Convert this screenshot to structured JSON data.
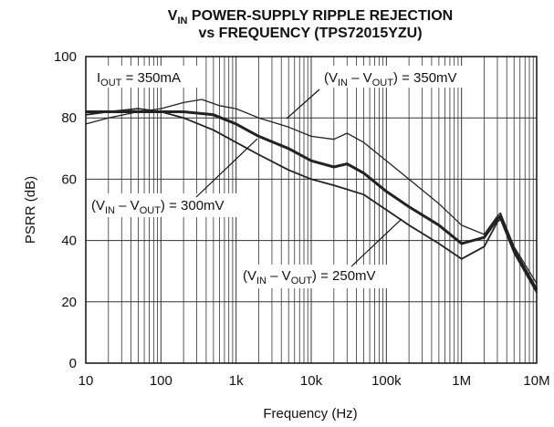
{
  "chart_data": {
    "type": "line",
    "title_lines": [
      [
        {
          "text": "V"
        },
        {
          "text": "IN",
          "sub": true
        },
        {
          "text": " POWER-SUPPLY RIPPLE REJECTION"
        }
      ],
      [
        {
          "text": "vs FREQUENCY (TPS72015YZU)"
        }
      ]
    ],
    "x_label": "Frequency (Hz)",
    "y_label": "PSRR (dB)",
    "log_x": true,
    "grid": true,
    "minor_grid": true,
    "color": "#222",
    "xlim": [
      10,
      10000000
    ],
    "ylim": [
      0,
      100
    ],
    "xticks": [
      10,
      100,
      {
        "value": 1000,
        "label": "1k"
      },
      {
        "value": 10000,
        "label": "10k"
      },
      {
        "value": 100000,
        "label": "100k"
      },
      {
        "value": 1000000,
        "label": "1M"
      },
      {
        "value": 10000000,
        "label": "10M"
      }
    ],
    "yticks": [
      0,
      20,
      40,
      60,
      80,
      100
    ],
    "series": [
      {
        "width": 1.3,
        "x": [
          10,
          20,
          50,
          100,
          200,
          350,
          600,
          1000,
          2000,
          5000,
          10000,
          20000,
          30000,
          50000,
          100000,
          200000,
          500000,
          1000000,
          2000000,
          3000000,
          3300000,
          5000000,
          10000000
        ],
        "values": [
          78,
          80,
          82,
          83,
          85,
          86,
          84,
          83,
          80,
          77,
          74,
          73,
          75,
          72,
          66,
          60,
          52,
          45,
          42,
          48,
          49,
          38,
          26
        ]
      },
      {
        "width": 3,
        "x": [
          10,
          20,
          50,
          100,
          200,
          500,
          1000,
          2000,
          5000,
          10000,
          20000,
          30000,
          50000,
          100000,
          200000,
          500000,
          1000000,
          2000000,
          3000000,
          3300000,
          5000000,
          10000000
        ],
        "values": [
          82,
          82,
          82,
          82,
          82,
          81,
          78,
          74,
          70,
          66,
          64,
          65,
          62,
          56,
          51,
          45,
          39,
          41,
          47,
          48,
          37,
          24
        ]
      },
      {
        "width": 1.8,
        "x": [
          10,
          20,
          50,
          100,
          200,
          500,
          1000,
          2000,
          5000,
          10000,
          20000,
          50000,
          100000,
          200000,
          500000,
          1000000,
          2000000,
          3000000,
          3300000,
          5000000,
          10000000
        ],
        "values": [
          81,
          82,
          83,
          82,
          80,
          76,
          72,
          68,
          63,
          60,
          58,
          55,
          50,
          45,
          39,
          34,
          38,
          46,
          47,
          36,
          23
        ]
      }
    ],
    "annotations": [
      [
        {
          "text": "I"
        },
        {
          "text": "OUT",
          "sub": true
        },
        {
          "text": " = 350mA"
        }
      ],
      [
        {
          "text": "(V"
        },
        {
          "text": "IN",
          "sub": true
        },
        {
          "text": " – V"
        },
        {
          "text": "OUT",
          "sub": true
        },
        {
          "text": ") = 350mV"
        }
      ],
      [
        {
          "text": "(V"
        },
        {
          "text": "IN",
          "sub": true
        },
        {
          "text": " – V"
        },
        {
          "text": "OUT",
          "sub": true
        },
        {
          "text": ") = 300mV"
        }
      ],
      [
        {
          "text": "(V"
        },
        {
          "text": "IN",
          "sub": true
        },
        {
          "text": " – V"
        },
        {
          "text": "OUT",
          "sub": true
        },
        {
          "text": ") = 250mV"
        }
      ]
    ]
  }
}
